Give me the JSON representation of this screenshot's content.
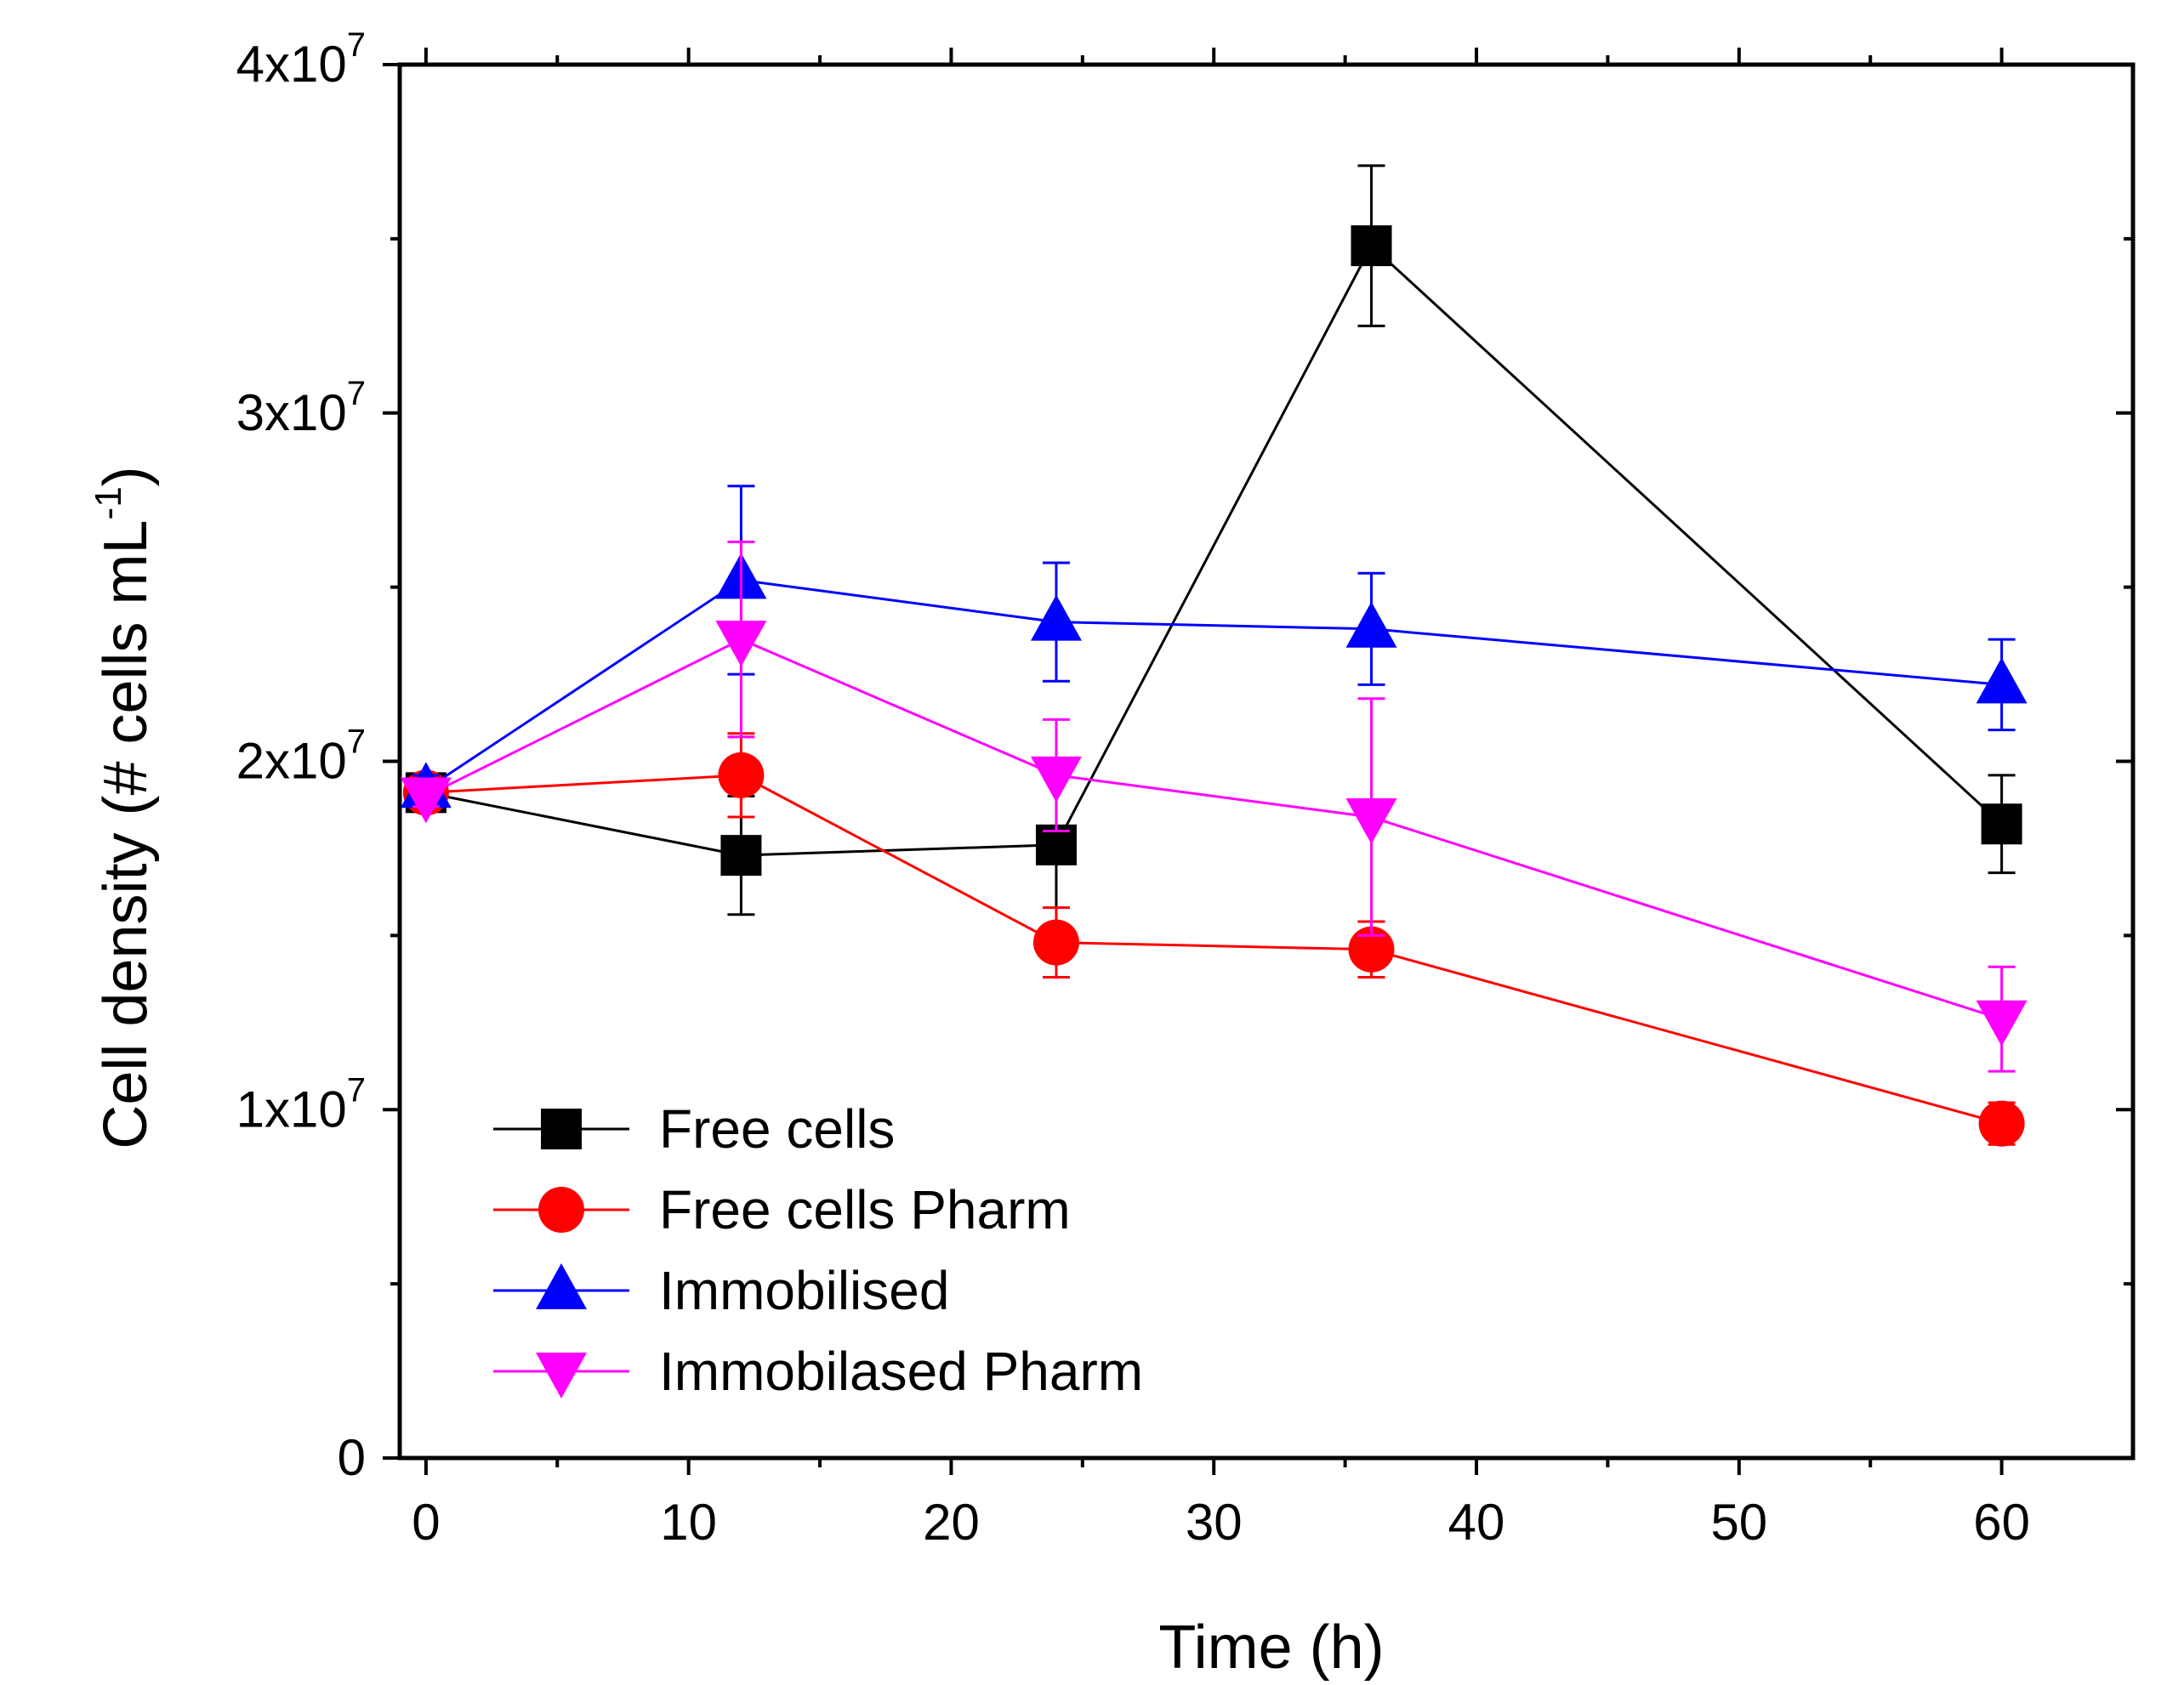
{
  "chart_data": {
    "type": "line",
    "title": "",
    "xlabel": "Time (h)",
    "ylabel": "Cell density (# cells mL-1)",
    "ylabel_parts": {
      "main": "Cell density (# cells mL",
      "sup": "-1",
      "end": ")"
    },
    "xlim": [
      -1,
      65
    ],
    "ylim": [
      0,
      40000000
    ],
    "x_ticks": [
      0,
      10,
      20,
      30,
      40,
      50,
      60
    ],
    "x_tick_labels": [
      "0",
      "10",
      "20",
      "30",
      "40",
      "50",
      "60"
    ],
    "y_ticks": [
      0,
      10000000,
      20000000,
      30000000,
      40000000
    ],
    "y_tick_labels": [
      {
        "base": "0",
        "exp": ""
      },
      {
        "base": "1x10",
        "exp": "7"
      },
      {
        "base": "2x10",
        "exp": "7"
      },
      {
        "base": "3x10",
        "exp": "7"
      },
      {
        "base": "4x10",
        "exp": "7"
      }
    ],
    "grid": false,
    "legend_position": "bottom-left",
    "series": [
      {
        "name": "Free cells",
        "color": "#000000",
        "marker": "square",
        "x": [
          0,
          12,
          24,
          36,
          60
        ],
        "y": [
          19100000,
          17300000,
          17600000,
          34800000,
          18200000
        ],
        "err": [
          400000,
          1700000,
          2300000,
          2300000,
          1400000
        ]
      },
      {
        "name": "Free cells Pharm",
        "color": "#ff0000",
        "marker": "circle",
        "x": [
          0,
          12,
          24,
          36,
          60
        ],
        "y": [
          19100000,
          19600000,
          14800000,
          14600000,
          9600000
        ],
        "err": [
          300000,
          1200000,
          1000000,
          800000,
          600000
        ]
      },
      {
        "name": "Immobilised",
        "color": "#0000ff",
        "marker": "triangle-up",
        "x": [
          0,
          12,
          24,
          36,
          60
        ],
        "y": [
          19200000,
          25200000,
          24000000,
          23800000,
          22200000
        ],
        "err": [
          400000,
          2700000,
          1700000,
          1600000,
          1300000
        ]
      },
      {
        "name": "Immobilased Pharm",
        "color": "#ff00ff",
        "marker": "triangle-down",
        "x": [
          0,
          12,
          24,
          36,
          60
        ],
        "y": [
          19000000,
          23500000,
          19600000,
          18400000,
          12600000
        ],
        "err": [
          300000,
          2800000,
          1600000,
          3400000,
          1500000
        ]
      }
    ]
  }
}
